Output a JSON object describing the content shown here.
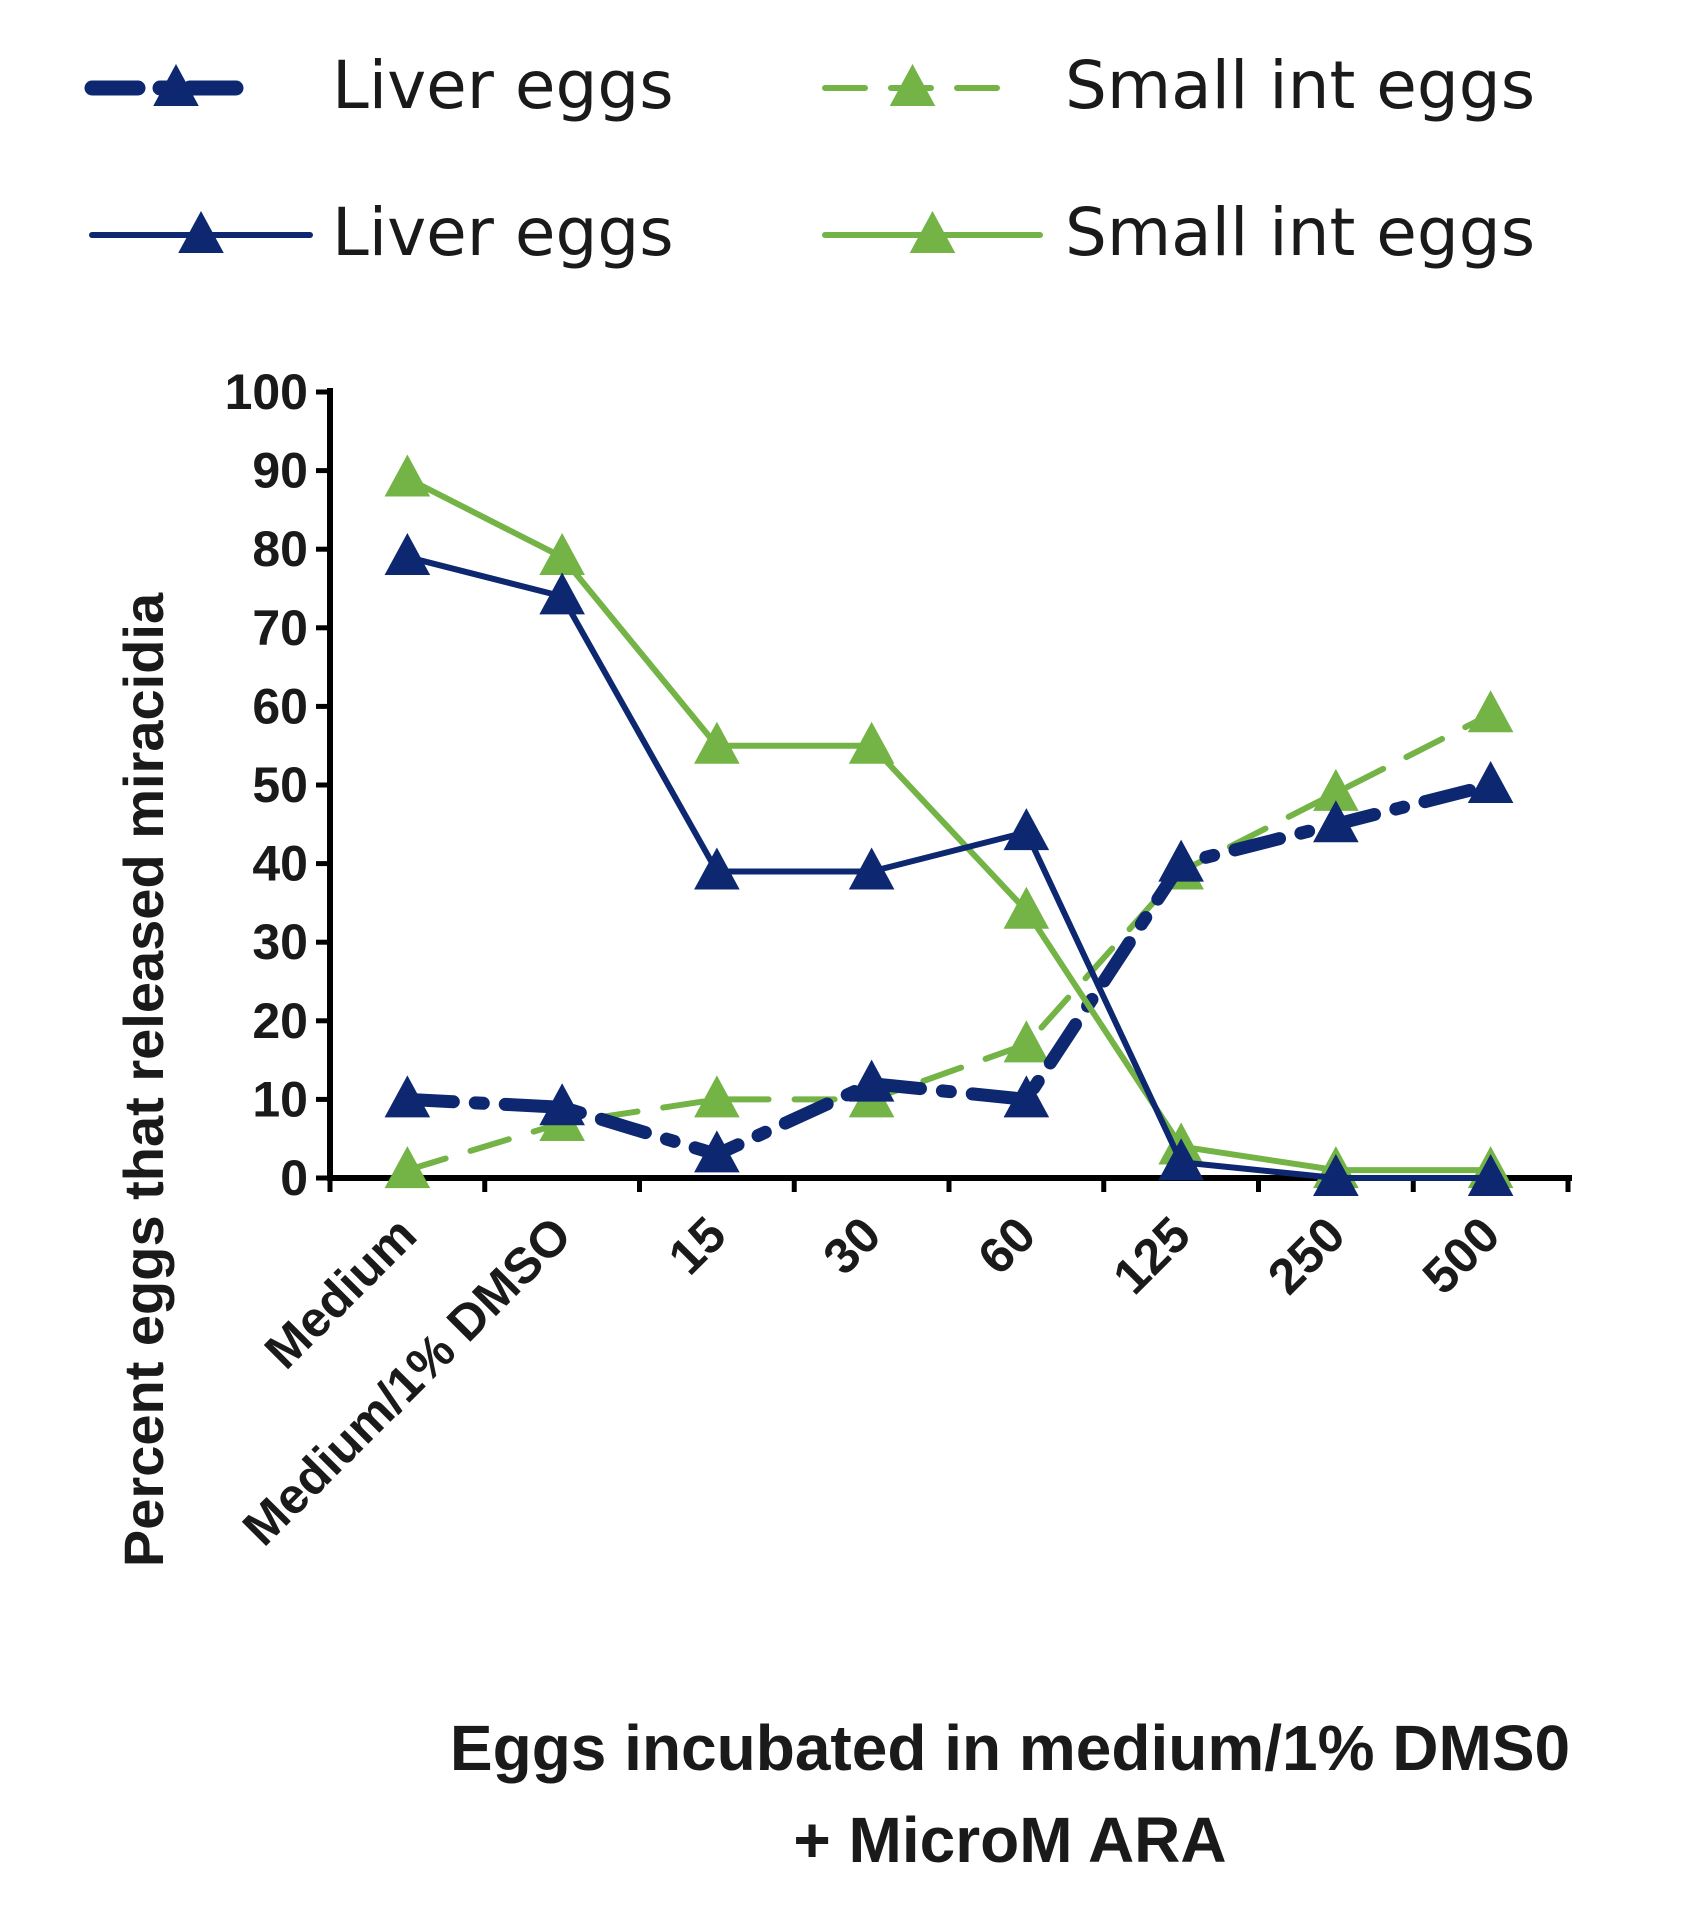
{
  "chart_data": {
    "type": "line",
    "title": "",
    "xlabel_line1": "Eggs incubated in medium/1% DMS0",
    "xlabel_line2": "+ MicroM ARA",
    "ylabel": "Percent eggs that released miracidia",
    "ylim": [
      0,
      100
    ],
    "yticks": [
      0,
      10,
      20,
      30,
      40,
      50,
      60,
      70,
      80,
      90,
      100
    ],
    "categories": [
      "Medium",
      "Medium/1% DMSO",
      "15",
      "30",
      "60",
      "125",
      "250",
      "500"
    ],
    "legend_position": "top",
    "series": [
      {
        "name": "Liver eggs",
        "style": "dash-dot",
        "color": "#0d2870",
        "values": [
          10,
          9,
          3,
          12,
          10,
          40,
          45,
          50
        ]
      },
      {
        "name": "Small int eggs",
        "style": "dashed",
        "color": "#74b446",
        "values": [
          1,
          7,
          10,
          10,
          17,
          39,
          49,
          59
        ]
      },
      {
        "name": "Liver eggs",
        "style": "solid",
        "color": "#0d2870",
        "values": [
          79,
          74,
          39,
          39,
          44,
          2,
          0,
          0
        ]
      },
      {
        "name": "Small int eggs",
        "style": "solid",
        "color": "#74b446",
        "values": [
          89,
          79,
          55,
          55,
          34,
          4,
          1,
          1
        ]
      }
    ]
  }
}
